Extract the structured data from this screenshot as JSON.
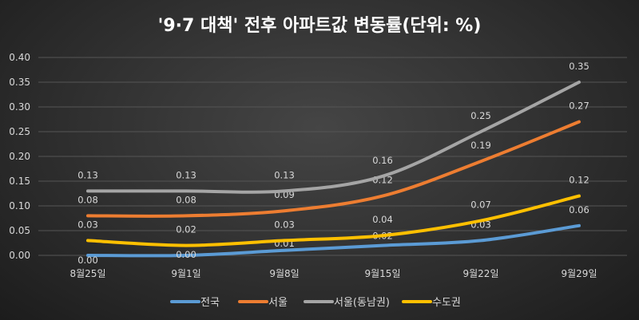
{
  "chart_data": {
    "type": "line",
    "title": "'9·7 대책' 전후 아파트값 변동률(단위: %)",
    "categories": [
      "8월25일",
      "9월1일",
      "9월8일",
      "9월15일",
      "9월22일",
      "9월29일"
    ],
    "ylim": [
      0,
      0.4
    ],
    "yticks": [
      "0.00",
      "0.05",
      "0.10",
      "0.15",
      "0.20",
      "0.25",
      "0.30",
      "0.35",
      "0.40"
    ],
    "grid": true,
    "legend": "bottom",
    "series": [
      {
        "name": "전국",
        "color": "#5b9bd5",
        "values": [
          0.0,
          0.0,
          0.01,
          0.02,
          0.03,
          0.06
        ]
      },
      {
        "name": "서울",
        "color": "#ed7d31",
        "values": [
          0.08,
          0.08,
          0.09,
          0.12,
          0.19,
          0.27
        ]
      },
      {
        "name": "서울(동남권)",
        "color": "#a5a5a5",
        "values": [
          0.13,
          0.13,
          0.13,
          0.16,
          0.25,
          0.35
        ]
      },
      {
        "name": "수도권",
        "color": "#ffc000",
        "values": [
          0.03,
          0.02,
          0.03,
          0.04,
          0.07,
          0.12
        ]
      }
    ]
  }
}
